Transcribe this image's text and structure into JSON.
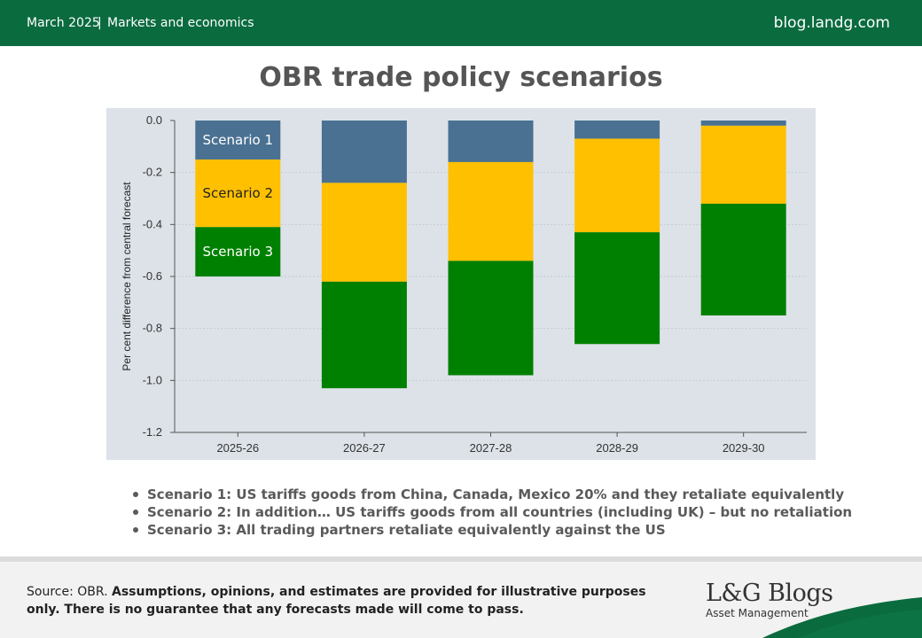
{
  "header": {
    "date": "March 2025",
    "separator": "|",
    "category": "Markets and economics",
    "site": "blog.landg.com"
  },
  "chart_data": {
    "type": "bar",
    "stacked": true,
    "title": "OBR trade policy scenarios",
    "ylabel": "Per cent difference from central forecast",
    "xlabel": "",
    "categories": [
      "2025-26",
      "2026-27",
      "2027-28",
      "2028-29",
      "2029-30"
    ],
    "ylim": [
      -1.2,
      0
    ],
    "yticks": [
      0,
      -0.2,
      -0.4,
      -0.6,
      -0.8,
      -1.0,
      -1.2
    ],
    "ytick_labels": [
      "0.0",
      "-0.2",
      "-0.4",
      "-0.6",
      "-0.8",
      "-1.0",
      "-1.2"
    ],
    "grid": true,
    "series": [
      {
        "name": "Scenario 1",
        "color": "#4a7192",
        "values": [
          -0.15,
          -0.24,
          -0.16,
          -0.07,
          -0.02
        ]
      },
      {
        "name": "Scenario 2",
        "color": "#ffc000",
        "values": [
          -0.26,
          -0.38,
          -0.38,
          -0.36,
          -0.3
        ]
      },
      {
        "name": "Scenario 3",
        "color": "#008000",
        "values": [
          -0.19,
          -0.41,
          -0.44,
          -0.43,
          -0.43
        ]
      }
    ]
  },
  "bullets": [
    "Scenario 1: US tariffs goods from China, Canada, Mexico 20% and they retaliate equivalently",
    "Scenario 2: In addition… US tariffs goods from all countries (including UK) – but no retaliation",
    "Scenario 3: All trading partners retaliate equivalently against the US"
  ],
  "footer": {
    "source_label": "Source: OBR.",
    "disclaimer": "Assumptions, opinions, and estimates are provided for illustrative purposes only. There is no guarantee that any forecasts made will come to pass.",
    "logo_brand": "L&G Blogs",
    "logo_sub": "Asset Management"
  },
  "colors": {
    "header_green": "#0a6b3f",
    "chart_bg": "#dde2e8",
    "footer_bg": "#f2f2f2"
  }
}
